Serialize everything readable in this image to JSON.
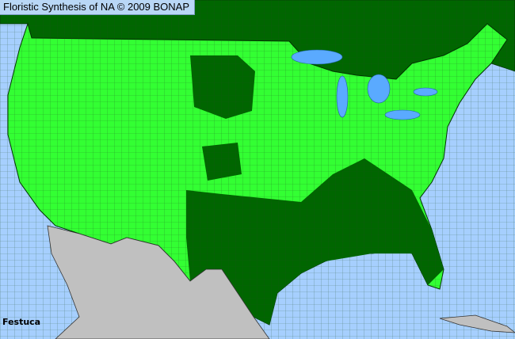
{
  "title": "Floristic Synthesis of NA © 2009 BONAP",
  "taxon": "Festuca",
  "colors": {
    "ocean": "#a6cffe",
    "county_present": "#33ff33",
    "state_present_or_canada": "#006600",
    "mexico_no_data": "#c0c0c0",
    "lakes": "#5aaaff",
    "county_lines": "#1a4d1a"
  }
}
